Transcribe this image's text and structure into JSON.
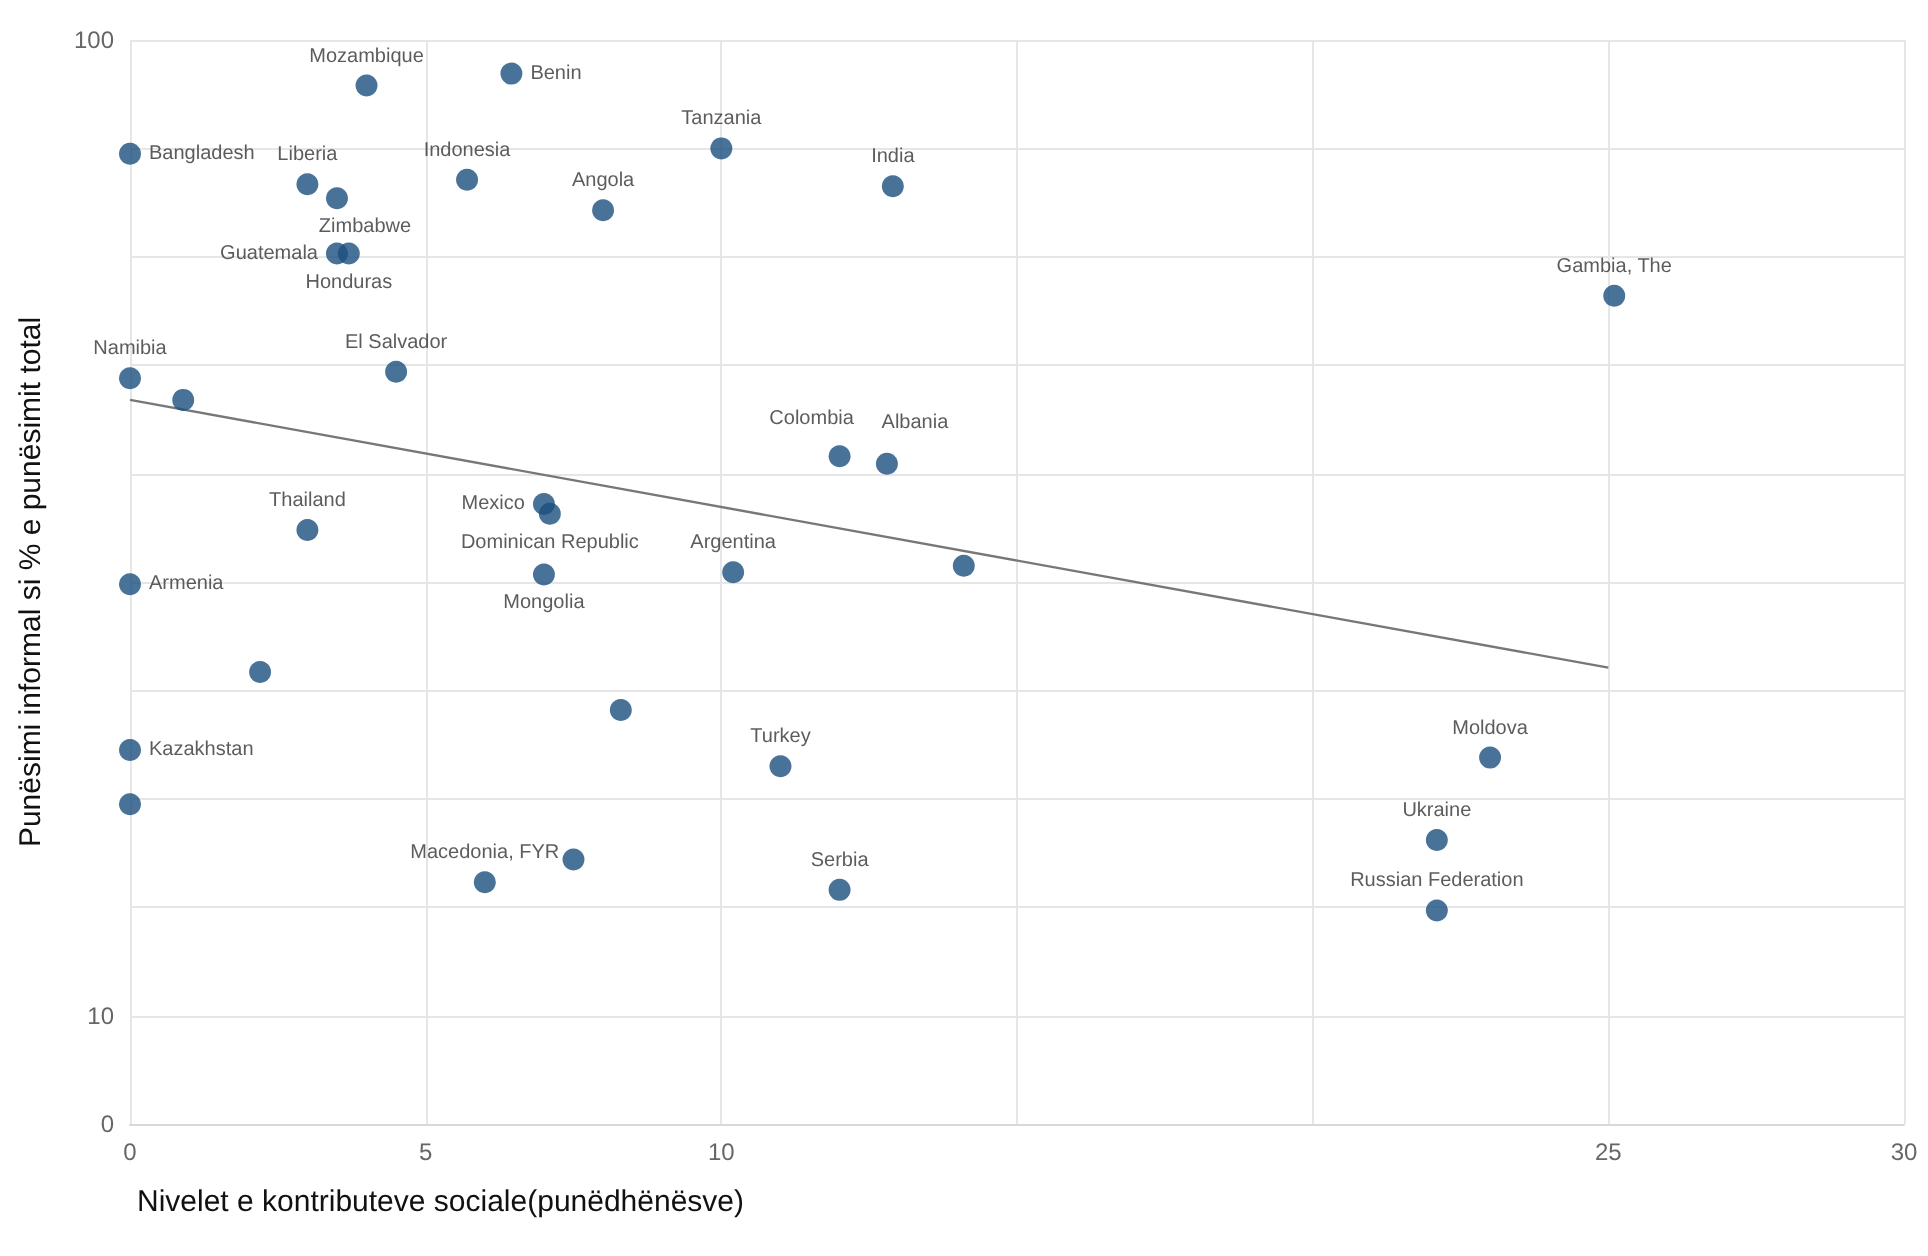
{
  "chart_data": {
    "type": "scatter",
    "xlabel": "Nivelet e kontributeve sociale(punëdhënësve)",
    "ylabel": "Punësimi informal si % e punësimit total",
    "xlim": [
      0,
      30
    ],
    "xticks": [
      0,
      5,
      10,
      {
        "value": 15,
        "label": null
      },
      {
        "value": 20,
        "label": null
      },
      25,
      30
    ],
    "ylim": [
      0,
      100
    ],
    "yticks": [
      0,
      10,
      {
        "value": 20,
        "label": null
      },
      {
        "value": 30,
        "label": null
      },
      {
        "value": 40,
        "label": null
      },
      {
        "value": 50,
        "label": null
      },
      {
        "value": 60,
        "label": null
      },
      {
        "value": 70,
        "label": null
      },
      {
        "value": 80,
        "label": null
      },
      {
        "value": 90,
        "label": null
      },
      100
    ],
    "grid": true,
    "marker": "circle",
    "series": [
      {
        "color": "#1b4f7e",
        "x": [
          4.0,
          6.45,
          0,
          3.0,
          3.5,
          5.7,
          8.0,
          10.0,
          12.9,
          3.5,
          3.7,
          25.1,
          4.5,
          0,
          0.9,
          12.0,
          12.8,
          3.0,
          7.0,
          7.1,
          7.0,
          10.2,
          14.1,
          0,
          2.2,
          8.3,
          11.0,
          0,
          0,
          6.0,
          7.5,
          12.0,
          23.0,
          22.1,
          22.1
        ],
        "values": [
          95.8,
          96.9,
          89.5,
          86.7,
          85.4,
          87.1,
          84.3,
          90.0,
          86.5,
          80.3,
          80.3,
          76.4,
          69.4,
          68.8,
          66.8,
          61.6,
          60.9,
          54.8,
          57.2,
          56.3,
          50.7,
          50.9,
          51.5,
          49.8,
          41.7,
          38.2,
          33.0,
          34.5,
          29.5,
          22.3,
          24.4,
          21.6,
          33.8,
          26.2,
          19.7
        ],
        "value_labels": [
          "Mozambique",
          "Benin",
          "Bangladesh",
          "Liberia",
          "Zimbabwe",
          "Indonesia",
          "Angola",
          "Tanzania",
          "India",
          "Guatemala",
          "Honduras",
          "Gambia, The",
          "El Salvador",
          "Namibia",
          null,
          "Colombia",
          "Albania",
          "Thailand",
          "Mexico",
          "Dominican Republic",
          "Mongolia",
          "Argentina",
          null,
          "Armenia",
          null,
          null,
          "Turkey",
          "Kazakhstan",
          null,
          "Macedonia, FYR",
          null,
          "Serbia",
          "Moldova",
          "Ukraine",
          "Russian Federation"
        ]
      },
      {
        "type": "line",
        "color": "#777777",
        "line_style": "solid",
        "marker": "none",
        "x": [
          0,
          25
        ],
        "values": [
          66.8,
          42.1
        ]
      }
    ]
  }
}
